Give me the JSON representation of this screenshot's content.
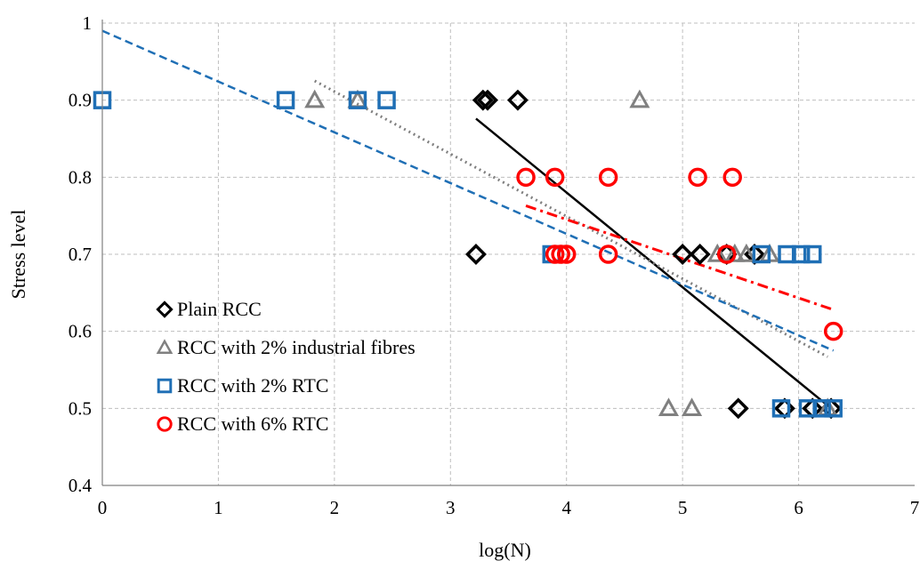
{
  "chart_data": {
    "type": "scatter",
    "title": "",
    "xlabel": "log(N)",
    "ylabel": "Stress level",
    "xlim": [
      0,
      7
    ],
    "ylim": [
      0.4,
      1.0
    ],
    "xticks": [
      "0",
      "1",
      "2",
      "3",
      "4",
      "5",
      "6",
      "7"
    ],
    "yticks": [
      "0.4",
      "0.5",
      "0.6",
      "0.7",
      "0.8",
      "0.9",
      "1"
    ],
    "grid": "dashed",
    "legend_position": "bottom-left",
    "series": [
      {
        "name": "Plain RCC",
        "marker": "diamond",
        "color": "#000000",
        "points": [
          [
            3.28,
            0.9
          ],
          [
            3.32,
            0.9
          ],
          [
            3.58,
            0.9
          ],
          [
            3.22,
            0.7
          ],
          [
            5.0,
            0.7
          ],
          [
            5.15,
            0.7
          ],
          [
            5.38,
            0.7
          ],
          [
            5.62,
            0.7
          ],
          [
            5.48,
            0.5
          ],
          [
            5.88,
            0.5
          ],
          [
            6.12,
            0.5
          ],
          [
            6.28,
            0.5
          ]
        ],
        "trendline": {
          "style": "solid",
          "from": [
            3.22,
            0.876
          ],
          "to": [
            6.28,
            0.5
          ]
        }
      },
      {
        "name": "RCC with 2% industrial fibres",
        "marker": "triangle",
        "color": "#808080",
        "points": [
          [
            1.83,
            0.9
          ],
          [
            2.2,
            0.9
          ],
          [
            4.63,
            0.9
          ],
          [
            5.3,
            0.7
          ],
          [
            5.45,
            0.7
          ],
          [
            5.55,
            0.7
          ],
          [
            5.75,
            0.7
          ],
          [
            4.88,
            0.5
          ],
          [
            5.08,
            0.5
          ],
          [
            6.25,
            0.5
          ]
        ],
        "trendline": {
          "style": "dotted",
          "from": [
            1.83,
            0.925
          ],
          "to": [
            6.25,
            0.567
          ]
        }
      },
      {
        "name": "RCC with 2% RTC",
        "marker": "square",
        "color": "#1f6fb5",
        "points": [
          [
            0.0,
            0.9
          ],
          [
            1.58,
            0.9
          ],
          [
            2.2,
            0.9
          ],
          [
            2.45,
            0.9
          ],
          [
            3.87,
            0.7
          ],
          [
            5.68,
            0.7
          ],
          [
            5.9,
            0.7
          ],
          [
            6.02,
            0.7
          ],
          [
            6.12,
            0.7
          ],
          [
            5.85,
            0.5
          ],
          [
            6.08,
            0.5
          ],
          [
            6.2,
            0.5
          ],
          [
            6.3,
            0.5
          ]
        ],
        "trendline": {
          "style": "dashed",
          "from": [
            0.0,
            0.99
          ],
          "to": [
            6.3,
            0.575
          ]
        }
      },
      {
        "name": "RCC with 6% RTC",
        "marker": "circle",
        "color": "#ff0000",
        "points": [
          [
            3.65,
            0.8
          ],
          [
            3.9,
            0.8
          ],
          [
            4.36,
            0.8
          ],
          [
            5.13,
            0.8
          ],
          [
            5.43,
            0.8
          ],
          [
            3.9,
            0.7
          ],
          [
            3.95,
            0.7
          ],
          [
            4.0,
            0.7
          ],
          [
            4.36,
            0.7
          ],
          [
            5.38,
            0.7
          ],
          [
            6.3,
            0.6
          ]
        ],
        "trendline": {
          "style": "dash-dot",
          "from": [
            3.65,
            0.763
          ],
          "to": [
            6.3,
            0.628
          ]
        }
      }
    ]
  }
}
